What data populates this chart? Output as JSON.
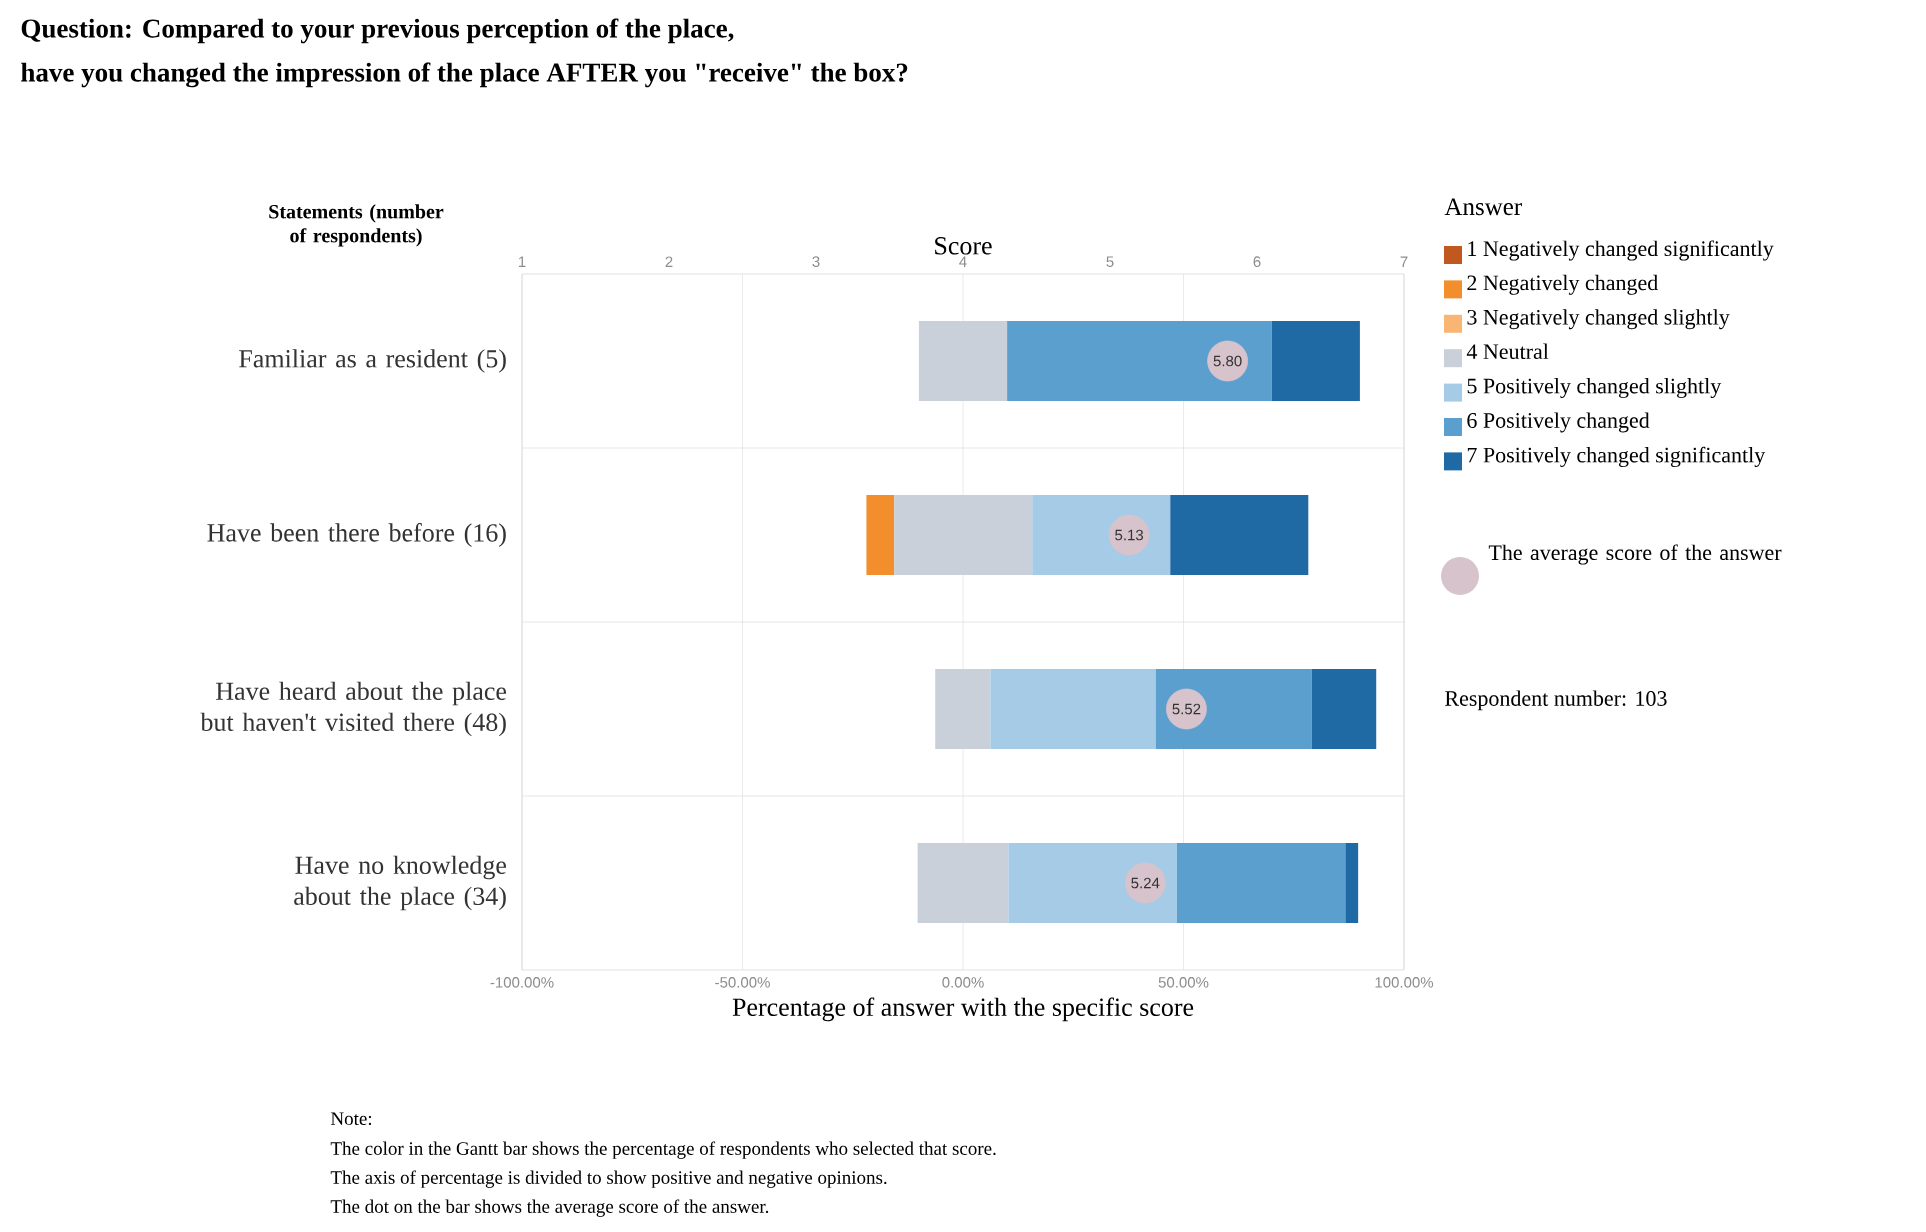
{
  "chart_data": {
    "type": "bar",
    "orientation": "horizontal",
    "title": "Question: Compared to your previous perception of the place,",
    "subtitle": "have you changed the impression of the place AFTER you \"receive\" the box?",
    "ylabel": "Statements (number of respondents)",
    "xlabel": "Percentage of answer with the specific score",
    "x2label": "Score",
    "legend_title": "Answer",
    "legend": "right",
    "grid": "x",
    "categories": [
      "Familiar as a resident (5)",
      "Have been there before (16)",
      "Have heard about the place but haven't visited there (48)",
      "Have no knowledge about the place (34)"
    ],
    "xlim": [
      -100,
      100
    ],
    "xticks": [
      {
        "value": -100,
        "label": "-100.00%"
      },
      {
        "value": -50,
        "label": "-50.00%"
      },
      {
        "value": 0,
        "label": "0.00%"
      },
      {
        "value": 50,
        "label": "50.00%"
      },
      {
        "value": 100,
        "label": "100.00%"
      }
    ],
    "x2lim": [
      1,
      7
    ],
    "x2ticks": [
      1,
      2,
      3,
      4,
      5,
      6,
      7
    ],
    "series": [
      {
        "name": "1 Negatively changed significantly",
        "color": "#c0581f",
        "values": [
          null,
          null,
          null,
          null
        ],
        "base": [
          null,
          null,
          null,
          null
        ]
      },
      {
        "name": "2 Negatively changed",
        "color": "#f28e2b",
        "values": [
          null,
          6.3,
          null,
          null
        ],
        "base": [
          null,
          -21.9,
          null,
          null
        ]
      },
      {
        "name": "3 Negatively changed slightly",
        "color": "#f8b574",
        "values": [
          null,
          null,
          null,
          null
        ],
        "base": [
          null,
          null,
          null,
          null
        ]
      },
      {
        "name": "4 Neutral",
        "color": "#c9d0da",
        "values": [
          20,
          31.3,
          12.5,
          20.6
        ],
        "base": [
          -10,
          -15.6,
          -6.3,
          -10.3
        ]
      },
      {
        "name": "5 Positively changed slightly",
        "color": "#a6cbe6",
        "values": [
          null,
          31.3,
          37.5,
          38.2
        ],
        "base": [
          null,
          15.7,
          6.2,
          10.3
        ]
      },
      {
        "name": "6 Positively changed",
        "color": "#5b9fcf",
        "values": [
          60,
          null,
          35.4,
          38.2
        ],
        "base": [
          10,
          null,
          43.7,
          48.5
        ]
      },
      {
        "name": "7 Positively changed significantly",
        "color": "#1f6aa5",
        "values": [
          20,
          31.3,
          14.6,
          2.9
        ],
        "base": [
          70,
          47,
          79.1,
          86.7
        ]
      },
      {
        "type": "scatter",
        "axis": "x2",
        "marker": "circle",
        "name": "The average score of the answer",
        "color": "#d6c3cb",
        "values": [
          5.8,
          5.13,
          5.52,
          5.24
        ],
        "value_labels": [
          "5.80",
          "5.13",
          "5.52",
          "5.24"
        ]
      }
    ],
    "annotations": [
      "Respondent number: 103",
      "Note:",
      "The color in the Gantt bar shows the percentage of respondents who selected that score.",
      "The axis of percentage is divided to show positive and negative opinions.",
      "The dot on the bar shows the average score of the answer."
    ]
  }
}
